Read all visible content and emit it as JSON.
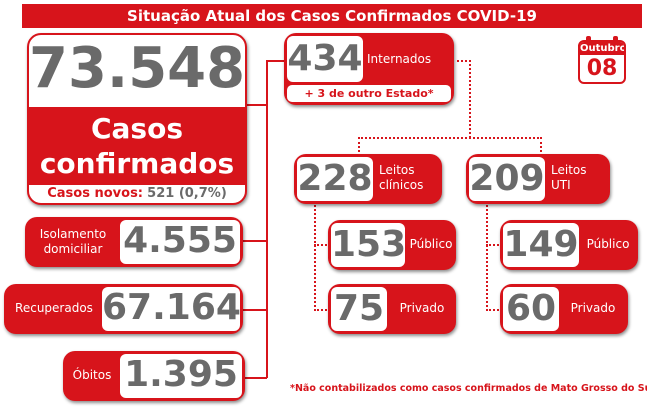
{
  "header": {
    "title": "Situação Atual dos Casos Confirmados COVID-19"
  },
  "calendar": {
    "month": "Outubro",
    "day": "08",
    "icon": "calendar-icon"
  },
  "confirmed": {
    "total": "73.548",
    "label_line1": "Casos",
    "label_line2": "confirmados",
    "new_label": "Casos novos:",
    "new_value": "521 (0,7%)"
  },
  "isolation": {
    "label_line1": "Isolamento",
    "label_line2": "domiciliar",
    "value": "4.555"
  },
  "recovered": {
    "label": "Recuperados",
    "value": "67.164"
  },
  "deaths": {
    "label": "Óbitos",
    "value": "1.395"
  },
  "hospitalized": {
    "value": "434",
    "label": "Internados",
    "extra": "+ 3 de outro Estado*"
  },
  "clinical": {
    "value": "228",
    "label_line1": "Leitos",
    "label_line2": "clínicos",
    "public_value": "153",
    "public_label": "Público",
    "private_value": "75",
    "private_label": "Privado"
  },
  "icu": {
    "value": "209",
    "label_line1": "Leitos",
    "label_line2": "UTI",
    "public_value": "149",
    "public_label": "Público",
    "private_value": "60",
    "private_label": "Privado"
  },
  "footnote": "*Não contabilizados como casos confirmados de Mato Grosso do Sul",
  "colors": {
    "accent": "#d7141b",
    "number": "#6a6a6a"
  }
}
